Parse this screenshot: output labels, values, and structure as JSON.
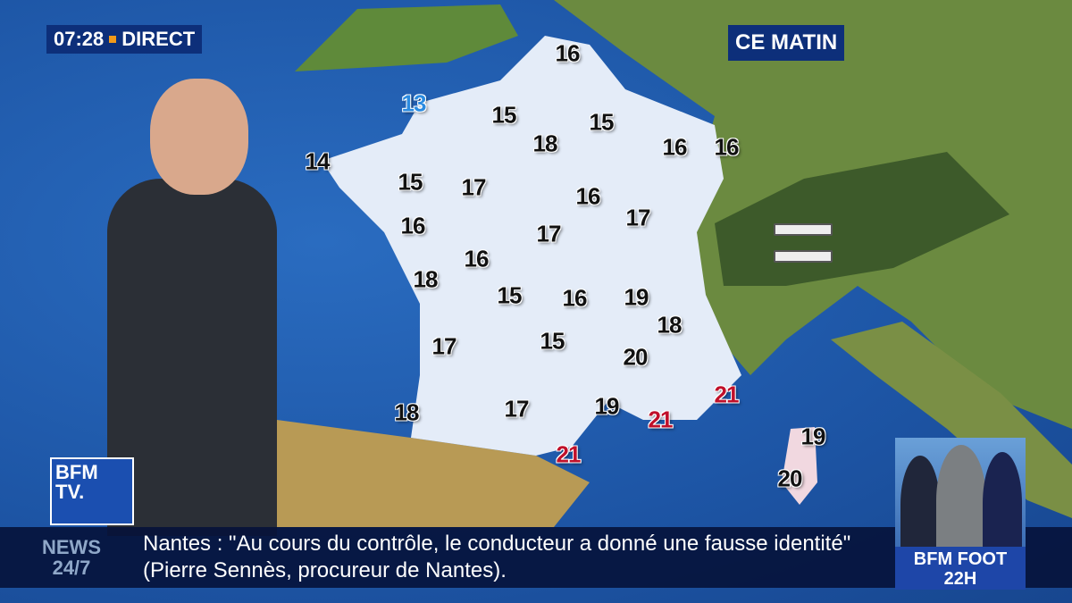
{
  "overlay": {
    "time": "07:28",
    "live_label": "DIRECT",
    "period": "CE MATIN",
    "accent_color": "#f29a1a"
  },
  "temperatures": [
    {
      "value": "16",
      "tone": "normal"
    },
    {
      "value": "13",
      "tone": "cool"
    },
    {
      "value": "15",
      "tone": "normal"
    },
    {
      "value": "15",
      "tone": "normal"
    },
    {
      "value": "18",
      "tone": "normal"
    },
    {
      "value": "16",
      "tone": "normal"
    },
    {
      "value": "16",
      "tone": "normal"
    },
    {
      "value": "14",
      "tone": "normal"
    },
    {
      "value": "15",
      "tone": "normal"
    },
    {
      "value": "17",
      "tone": "normal"
    },
    {
      "value": "16",
      "tone": "normal"
    },
    {
      "value": "17",
      "tone": "normal"
    },
    {
      "value": "16",
      "tone": "normal"
    },
    {
      "value": "17",
      "tone": "normal"
    },
    {
      "value": "16",
      "tone": "normal"
    },
    {
      "value": "18",
      "tone": "normal"
    },
    {
      "value": "15",
      "tone": "normal"
    },
    {
      "value": "16",
      "tone": "normal"
    },
    {
      "value": "19",
      "tone": "normal"
    },
    {
      "value": "18",
      "tone": "normal"
    },
    {
      "value": "17",
      "tone": "normal"
    },
    {
      "value": "15",
      "tone": "normal"
    },
    {
      "value": "20",
      "tone": "normal"
    },
    {
      "value": "18",
      "tone": "normal"
    },
    {
      "value": "17",
      "tone": "normal"
    },
    {
      "value": "19",
      "tone": "normal"
    },
    {
      "value": "21",
      "tone": "warm"
    },
    {
      "value": "21",
      "tone": "warm"
    },
    {
      "value": "21",
      "tone": "warm"
    },
    {
      "value": "19",
      "tone": "normal"
    },
    {
      "value": "20",
      "tone": "normal"
    }
  ],
  "logo": {
    "text": "BFM TV"
  },
  "ticker": {
    "label_line1": "NEWS",
    "label_line2": "24/7",
    "text": "Nantes : \"Au cours du contrôle, le conducteur a donné une fausse identité\" (Pierre Sennès, procureur de Nantes)."
  },
  "promo": {
    "line1": "BFM FOOT",
    "line2": "22H"
  }
}
